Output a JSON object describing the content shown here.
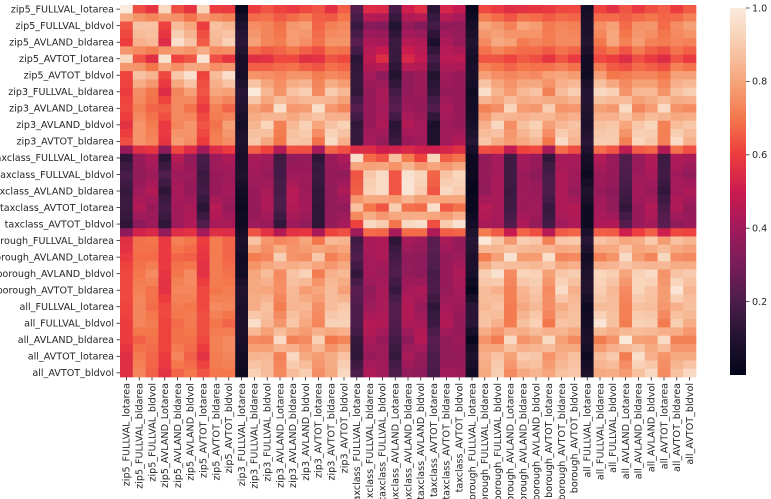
{
  "chart_data": {
    "type": "heatmap",
    "row_labels": [
      "zip5_FULLVAL_lotarea",
      "zip5_FULLVAL_bldvol",
      "zip5_AVLAND_bldarea",
      "zip5_AVTOT_lotarea",
      "zip5_AVTOT_bldvol",
      "zip3_FULLVAL_bldarea",
      "zip3_AVLAND_Lotarea",
      "zip3_AVLAND_bldvol",
      "zip3_AVTOT_bldarea",
      "taxclass_FULLVAL_lotarea",
      "taxclass_FULLVAL_bldvol",
      "taxclass_AVLAND_bldarea",
      "taxclass_AVTOT_lotarea",
      "taxclass_AVTOT_bldvol",
      "borough_FULLVAL_bldarea",
      "borough_AVLAND_Lotarea",
      "borough_AVLAND_bldvol",
      "borough_AVTOT_bldarea",
      "all_FULLVAL_lotarea",
      "all_FULLVAL_bldvol",
      "all_AVLAND_bldarea",
      "all_AVTOT_lotarea",
      "all_AVTOT_bldvol"
    ],
    "col_labels": [
      "zip5_FULLVAL_lotarea",
      "zip5_FULLVAL_bldarea",
      "zip5_FULLVAL_bldvol",
      "zip5_AVLAND_Lotarea",
      "zip5_AVLAND_bldarea",
      "zip5_AVLAND_bldvol",
      "zip5_AVTOT_lotarea",
      "zip5_AVTOT_bldarea",
      "zip5_AVTOT_bldvol",
      "zip3_FULLVAL_lotarea",
      "zip3_FULLVAL_bldarea",
      "zip3_FULLVAL_bldvol",
      "zip3_AVLAND_Lotarea",
      "zip3_AVLAND_bldarea",
      "zip3_AVLAND_bldvol",
      "zip3_AVTOT_lotarea",
      "zip3_AVTOT_bldarea",
      "zip3_AVTOT_bldvol",
      "taxclass_FULLVAL_lotarea",
      "taxclass_FULLVAL_bldarea",
      "taxclass_FULLVAL_bldvol",
      "taxclass_AVLAND_Lotarea",
      "taxclass_AVLAND_bldarea",
      "taxclass_AVLAND_bldvol",
      "taxclass_AVTOT_lotarea",
      "taxclass_AVTOT_bldarea",
      "taxclass_AVTOT_bldvol",
      "borough_FULLVAL_lotarea",
      "borough_FULLVAL_bldarea",
      "borough_FULLVAL_bldvol",
      "borough_AVLAND_Lotarea",
      "borough_AVLAND_bldarea",
      "borough_AVLAND_bldvol",
      "borough_AVTOT_lotarea",
      "borough_AVTOT_bldarea",
      "borough_AVTOT_bldvol",
      "all_FULLVAL_lotarea",
      "all_FULLVAL_bldarea",
      "all_FULLVAL_bldvol",
      "all_AVLAND_Lotarea",
      "all_AVLAND_bldarea",
      "all_AVLAND_bldvol",
      "all_AVTOT_lotarea",
      "all_AVTOT_bldarea",
      "all_AVTOT_bldvol"
    ],
    "value_range": [
      0.0,
      1.0
    ],
    "colorbar_ticks": [
      0.2,
      0.4,
      0.6,
      0.8,
      1.0
    ],
    "colorbar_tick_labels": [
      "0.2",
      "0.4",
      "0.6",
      "0.8",
      "1.0"
    ],
    "colormap": "rocket",
    "colormap_stops": [
      [
        0.0,
        "#03051a"
      ],
      [
        0.1,
        "#221331"
      ],
      [
        0.2,
        "#4c1d4b"
      ],
      [
        0.3,
        "#781c5a"
      ],
      [
        0.4,
        "#a11a5b"
      ],
      [
        0.5,
        "#cb1b4f"
      ],
      [
        0.6,
        "#ed3c3e"
      ],
      [
        0.7,
        "#f4774c"
      ],
      [
        0.8,
        "#f6a57c"
      ],
      [
        0.9,
        "#f8cbae"
      ],
      [
        1.0,
        "#faebdd"
      ]
    ],
    "values": [
      [
        1.0,
        0.63,
        0.58,
        0.94,
        0.63,
        0.58,
        0.93,
        0.6,
        0.59,
        0.02,
        0.6,
        0.64,
        0.61,
        0.59,
        0.62,
        0.64,
        0.57,
        0.66,
        0.22,
        0.55,
        0.54,
        0.19,
        0.51,
        0.56,
        0.12,
        0.53,
        0.48,
        0.02,
        0.62,
        0.59,
        0.56,
        0.57,
        0.58,
        0.59,
        0.62,
        0.62,
        0.06,
        0.61,
        0.57,
        0.64,
        0.59,
        0.63,
        0.66,
        0.6,
        0.65
      ],
      [
        0.64,
        0.88,
        0.88,
        0.61,
        0.86,
        0.8,
        0.6,
        0.87,
        0.84,
        0.09,
        0.75,
        0.73,
        0.69,
        0.77,
        0.79,
        0.67,
        0.72,
        0.74,
        0.15,
        0.34,
        0.33,
        0.1,
        0.37,
        0.33,
        0.18,
        0.36,
        0.36,
        0.06,
        0.8,
        0.77,
        0.72,
        0.8,
        0.78,
        0.71,
        0.73,
        0.72,
        0.08,
        0.75,
        0.79,
        0.68,
        0.76,
        0.77,
        0.68,
        0.75,
        0.79
      ],
      [
        0.6,
        0.83,
        0.85,
        0.55,
        0.96,
        0.88,
        0.65,
        0.85,
        0.92,
        0.12,
        0.79,
        0.73,
        0.71,
        0.78,
        0.75,
        0.69,
        0.76,
        0.76,
        0.23,
        0.43,
        0.42,
        0.16,
        0.45,
        0.44,
        0.08,
        0.43,
        0.38,
        0.1,
        0.74,
        0.81,
        0.79,
        0.71,
        0.73,
        0.71,
        0.74,
        0.74,
        0.1,
        0.7,
        0.8,
        0.72,
        0.78,
        0.72,
        0.71,
        0.73,
        0.72
      ],
      [
        0.94,
        0.64,
        0.56,
        0.97,
        0.61,
        0.64,
        0.98,
        0.63,
        0.58,
        0.07,
        0.56,
        0.57,
        0.62,
        0.62,
        0.56,
        0.57,
        0.64,
        0.62,
        0.12,
        0.47,
        0.55,
        0.15,
        0.54,
        0.48,
        0.19,
        0.46,
        0.47,
        0.06,
        0.64,
        0.64,
        0.61,
        0.65,
        0.63,
        0.58,
        0.64,
        0.59,
        0.05,
        0.62,
        0.6,
        0.55,
        0.63,
        0.59,
        0.55,
        0.64,
        0.59
      ],
      [
        0.61,
        0.88,
        0.84,
        0.62,
        0.89,
        0.97,
        0.61,
        0.86,
        0.96,
        0.06,
        0.76,
        0.75,
        0.73,
        0.76,
        0.76,
        0.71,
        0.74,
        0.72,
        0.15,
        0.41,
        0.35,
        0.1,
        0.36,
        0.39,
        0.1,
        0.4,
        0.38,
        0.07,
        0.79,
        0.75,
        0.73,
        0.75,
        0.74,
        0.79,
        0.8,
        0.78,
        0.04,
        0.79,
        0.7,
        0.71,
        0.73,
        0.73,
        0.7,
        0.79,
        0.79
      ],
      [
        0.6,
        0.75,
        0.7,
        0.55,
        0.73,
        0.79,
        0.64,
        0.8,
        0.79,
        0.12,
        0.99,
        0.85,
        0.76,
        0.88,
        0.91,
        0.74,
        0.9,
        0.85,
        0.14,
        0.37,
        0.42,
        0.18,
        0.36,
        0.39,
        0.14,
        0.37,
        0.38,
        0.04,
        0.96,
        0.84,
        0.78,
        0.85,
        0.88,
        0.72,
        0.86,
        0.91,
        0.11,
        0.94,
        0.92,
        0.76,
        0.85,
        0.85,
        0.76,
        0.87,
        0.91
      ],
      [
        0.62,
        0.72,
        0.67,
        0.66,
        0.74,
        0.69,
        0.59,
        0.72,
        0.67,
        0.1,
        0.79,
        0.75,
        0.96,
        0.77,
        0.78,
        0.96,
        0.77,
        0.73,
        0.22,
        0.38,
        0.41,
        0.23,
        0.39,
        0.37,
        0.21,
        0.42,
        0.38,
        0.05,
        0.72,
        0.75,
        0.93,
        0.78,
        0.77,
        0.91,
        0.76,
        0.77,
        0.1,
        0.79,
        0.77,
        0.95,
        0.73,
        0.78,
        0.95,
        0.76,
        0.74
      ],
      [
        0.57,
        0.76,
        0.71,
        0.59,
        0.73,
        0.76,
        0.64,
        0.69,
        0.79,
        0.06,
        0.84,
        0.93,
        0.72,
        0.85,
        0.92,
        0.8,
        0.88,
        0.92,
        0.14,
        0.38,
        0.43,
        0.12,
        0.44,
        0.41,
        0.08,
        0.39,
        0.38,
        0.07,
        0.83,
        0.94,
        0.75,
        0.87,
        0.92,
        0.79,
        0.85,
        0.88,
        0.08,
        0.87,
        0.89,
        0.8,
        0.89,
        0.93,
        0.72,
        0.86,
        0.89
      ],
      [
        0.63,
        0.76,
        0.73,
        0.58,
        0.78,
        0.75,
        0.6,
        0.72,
        0.75,
        0.09,
        0.89,
        0.81,
        0.7,
        0.89,
        0.88,
        0.69,
        0.95,
        0.83,
        0.15,
        0.41,
        0.37,
        0.16,
        0.38,
        0.4,
        0.09,
        0.4,
        0.44,
        0.11,
        0.89,
        0.82,
        0.78,
        0.81,
        0.85,
        0.7,
        0.95,
        0.84,
        0.12,
        0.91,
        0.9,
        0.72,
        0.93,
        0.89,
        0.72,
        0.95,
        0.83
      ],
      [
        0.13,
        0.37,
        0.43,
        0.12,
        0.45,
        0.36,
        0.19,
        0.39,
        0.43,
        0.07,
        0.42,
        0.4,
        0.17,
        0.36,
        0.37,
        0.13,
        0.38,
        0.43,
        0.96,
        0.68,
        0.64,
        0.87,
        0.71,
        0.61,
        0.93,
        0.66,
        0.69,
        0.03,
        0.36,
        0.41,
        0.17,
        0.41,
        0.38,
        0.14,
        0.41,
        0.42,
        0.06,
        0.44,
        0.38,
        0.21,
        0.37,
        0.44,
        0.16,
        0.43,
        0.42
      ],
      [
        0.19,
        0.36,
        0.39,
        0.21,
        0.39,
        0.39,
        0.16,
        0.38,
        0.39,
        0.09,
        0.4,
        0.38,
        0.18,
        0.39,
        0.39,
        0.16,
        0.37,
        0.36,
        0.64,
        0.89,
        0.95,
        0.64,
        0.97,
        0.93,
        0.67,
        0.88,
        0.93,
        0.03,
        0.37,
        0.41,
        0.17,
        0.38,
        0.35,
        0.19,
        0.43,
        0.4,
        0.03,
        0.39,
        0.38,
        0.2,
        0.39,
        0.42,
        0.18,
        0.4,
        0.36
      ],
      [
        0.15,
        0.4,
        0.44,
        0.13,
        0.42,
        0.37,
        0.18,
        0.38,
        0.41,
        0.05,
        0.38,
        0.42,
        0.19,
        0.45,
        0.39,
        0.14,
        0.36,
        0.43,
        0.66,
        0.92,
        0.95,
        0.64,
        0.98,
        0.9,
        0.64,
        0.94,
        0.9,
        0.01,
        0.36,
        0.42,
        0.16,
        0.39,
        0.38,
        0.2,
        0.43,
        0.37,
        0.09,
        0.38,
        0.35,
        0.18,
        0.41,
        0.38,
        0.14,
        0.41,
        0.43
      ],
      [
        0.16,
        0.44,
        0.38,
        0.18,
        0.4,
        0.42,
        0.12,
        0.45,
        0.37,
        0.03,
        0.37,
        0.43,
        0.2,
        0.44,
        0.41,
        0.13,
        0.36,
        0.36,
        0.87,
        0.7,
        0.64,
        0.91,
        0.69,
        0.68,
        0.96,
        0.65,
        0.69,
        0.02,
        0.45,
        0.42,
        0.17,
        0.39,
        0.4,
        0.15,
        0.43,
        0.44,
        0.04,
        0.41,
        0.36,
        0.14,
        0.38,
        0.44,
        0.2,
        0.44,
        0.37
      ],
      [
        0.13,
        0.35,
        0.39,
        0.13,
        0.39,
        0.44,
        0.21,
        0.42,
        0.42,
        0.04,
        0.39,
        0.38,
        0.14,
        0.39,
        0.36,
        0.13,
        0.37,
        0.41,
        0.61,
        0.94,
        0.9,
        0.7,
        0.94,
        0.96,
        0.63,
        0.9,
        0.97,
        0.06,
        0.42,
        0.41,
        0.21,
        0.43,
        0.37,
        0.18,
        0.4,
        0.43,
        0.04,
        0.43,
        0.44,
        0.22,
        0.38,
        0.41,
        0.23,
        0.36,
        0.38
      ],
      [
        0.56,
        0.69,
        0.7,
        0.59,
        0.72,
        0.7,
        0.6,
        0.71,
        0.67,
        0.08,
        0.88,
        0.77,
        0.73,
        0.75,
        0.8,
        0.7,
        0.85,
        0.84,
        0.17,
        0.42,
        0.43,
        0.13,
        0.41,
        0.39,
        0.23,
        0.42,
        0.37,
        0.11,
        0.99,
        0.89,
        0.77,
        0.91,
        0.89,
        0.72,
        0.89,
        0.9,
        0.12,
        0.88,
        0.85,
        0.8,
        0.82,
        0.9,
        0.78,
        0.87,
        0.84
      ],
      [
        0.59,
        0.68,
        0.68,
        0.59,
        0.67,
        0.66,
        0.58,
        0.71,
        0.67,
        0.05,
        0.71,
        0.73,
        0.91,
        0.76,
        0.75,
        0.89,
        0.72,
        0.76,
        0.21,
        0.41,
        0.43,
        0.18,
        0.36,
        0.35,
        0.22,
        0.37,
        0.39,
        0.08,
        0.71,
        0.79,
        0.97,
        0.78,
        0.78,
        0.96,
        0.73,
        0.74,
        0.05,
        0.72,
        0.76,
        0.95,
        0.78,
        0.73,
        0.94,
        0.75,
        0.74
      ],
      [
        0.62,
        0.7,
        0.74,
        0.58,
        0.7,
        0.74,
        0.57,
        0.71,
        0.69,
        0.05,
        0.8,
        0.86,
        0.74,
        0.88,
        0.92,
        0.71,
        0.83,
        0.85,
        0.14,
        0.41,
        0.39,
        0.21,
        0.36,
        0.35,
        0.19,
        0.38,
        0.43,
        0.07,
        0.91,
        0.97,
        0.74,
        0.93,
        0.92,
        0.79,
        0.89,
        0.91,
        0.09,
        0.93,
        0.91,
        0.8,
        0.92,
        0.95,
        0.76,
        0.88,
        0.9
      ],
      [
        0.62,
        0.72,
        0.69,
        0.57,
        0.73,
        0.73,
        0.62,
        0.7,
        0.71,
        0.1,
        0.81,
        0.8,
        0.75,
        0.85,
        0.78,
        0.8,
        0.86,
        0.79,
        0.23,
        0.36,
        0.42,
        0.15,
        0.41,
        0.43,
        0.2,
        0.37,
        0.41,
        0.01,
        0.86,
        0.83,
        0.72,
        0.84,
        0.89,
        0.74,
        0.95,
        0.83,
        0.1,
        0.91,
        0.85,
        0.74,
        0.93,
        0.88,
        0.78,
        0.98,
        0.84
      ],
      [
        0.61,
        0.73,
        0.68,
        0.62,
        0.71,
        0.7,
        0.62,
        0.74,
        0.73,
        0.08,
        0.82,
        0.87,
        0.71,
        0.84,
        0.85,
        0.75,
        0.86,
        0.89,
        0.2,
        0.39,
        0.42,
        0.22,
        0.44,
        0.38,
        0.13,
        0.41,
        0.39,
        0.12,
        0.85,
        0.88,
        0.71,
        0.81,
        0.85,
        0.75,
        0.82,
        0.86,
        0.04,
        0.86,
        0.86,
        0.72,
        0.87,
        0.86,
        0.77,
        0.83,
        0.87
      ],
      [
        0.6,
        0.73,
        0.71,
        0.61,
        0.68,
        0.71,
        0.63,
        0.7,
        0.67,
        0.08,
        0.96,
        0.85,
        0.77,
        0.89,
        0.81,
        0.73,
        0.92,
        0.92,
        0.2,
        0.45,
        0.44,
        0.21,
        0.43,
        0.42,
        0.16,
        0.44,
        0.37,
        0.12,
        0.88,
        0.83,
        0.71,
        0.87,
        0.92,
        0.7,
        0.88,
        0.87,
        0.05,
        0.98,
        0.87,
        0.71,
        0.92,
        0.91,
        0.71,
        0.91,
        0.82
      ],
      [
        0.6,
        0.66,
        0.69,
        0.61,
        0.69,
        0.69,
        0.62,
        0.72,
        0.74,
        0.07,
        0.74,
        0.73,
        0.95,
        0.72,
        0.74,
        0.92,
        0.7,
        0.73,
        0.15,
        0.42,
        0.38,
        0.18,
        0.35,
        0.45,
        0.23,
        0.36,
        0.39,
        0.02,
        0.76,
        0.71,
        0.95,
        0.76,
        0.79,
        0.95,
        0.79,
        0.74,
        0.08,
        0.71,
        0.76,
        0.99,
        0.79,
        0.78,
        0.95,
        0.72,
        0.72
      ],
      [
        0.56,
        0.71,
        0.67,
        0.6,
        0.73,
        0.66,
        0.57,
        0.71,
        0.73,
        0.05,
        0.84,
        0.85,
        0.72,
        0.94,
        0.81,
        0.78,
        0.82,
        0.88,
        0.13,
        0.38,
        0.39,
        0.15,
        0.42,
        0.37,
        0.2,
        0.36,
        0.37,
        0.09,
        0.83,
        0.88,
        0.79,
        0.9,
        0.89,
        0.76,
        0.83,
        0.87,
        0.04,
        0.86,
        0.9,
        0.71,
        0.96,
        0.83,
        0.76,
        0.81,
        0.81
      ],
      [
        0.56,
        0.73,
        0.66,
        0.57,
        0.67,
        0.7,
        0.64,
        0.7,
        0.7,
        0.04,
        0.92,
        0.86,
        0.74,
        0.86,
        0.91,
        0.75,
        0.81,
        0.94,
        0.2,
        0.43,
        0.4,
        0.2,
        0.36,
        0.35,
        0.19,
        0.4,
        0.39,
        0.05,
        0.81,
        0.91,
        0.74,
        0.81,
        0.84,
        0.8,
        0.87,
        0.89,
        0.08,
        0.81,
        0.82,
        0.78,
        0.87,
        0.94,
        0.74,
        0.87,
        0.94
      ]
    ]
  }
}
